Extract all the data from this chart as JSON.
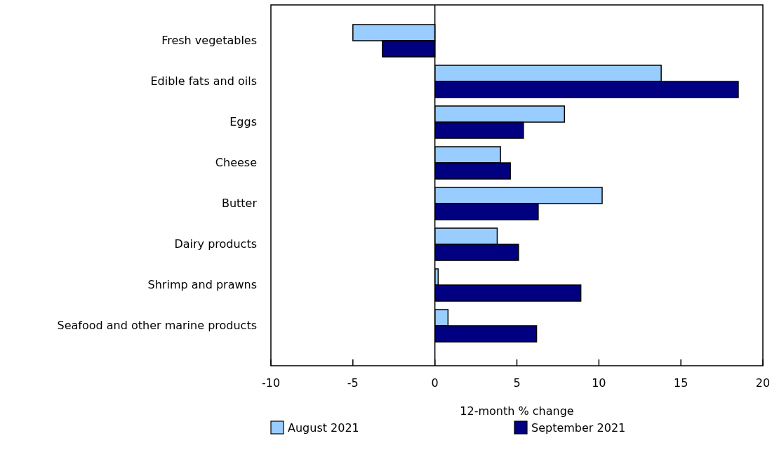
{
  "chart_data": {
    "type": "bar",
    "orientation": "horizontal",
    "xlabel": "12-month % change",
    "categories": [
      "Fresh vegetables",
      "Edible fats and oils",
      "Eggs",
      "Cheese",
      "Butter",
      "Dairy products",
      "Shrimp and prawns",
      "Seafood and other marine products"
    ],
    "series": [
      {
        "name": "August 2021",
        "color": "#99ccff",
        "values": [
          -5.0,
          13.8,
          7.9,
          4.0,
          10.2,
          3.8,
          0.2,
          0.8
        ]
      },
      {
        "name": "September 2021",
        "color": "#000080",
        "values": [
          -3.2,
          18.5,
          5.4,
          4.6,
          6.3,
          5.1,
          8.9,
          6.2
        ]
      }
    ],
    "xlim": [
      -10,
      20
    ],
    "xticks": [
      -10,
      -5,
      0,
      5,
      10,
      15,
      20
    ],
    "legend": "bottom"
  }
}
